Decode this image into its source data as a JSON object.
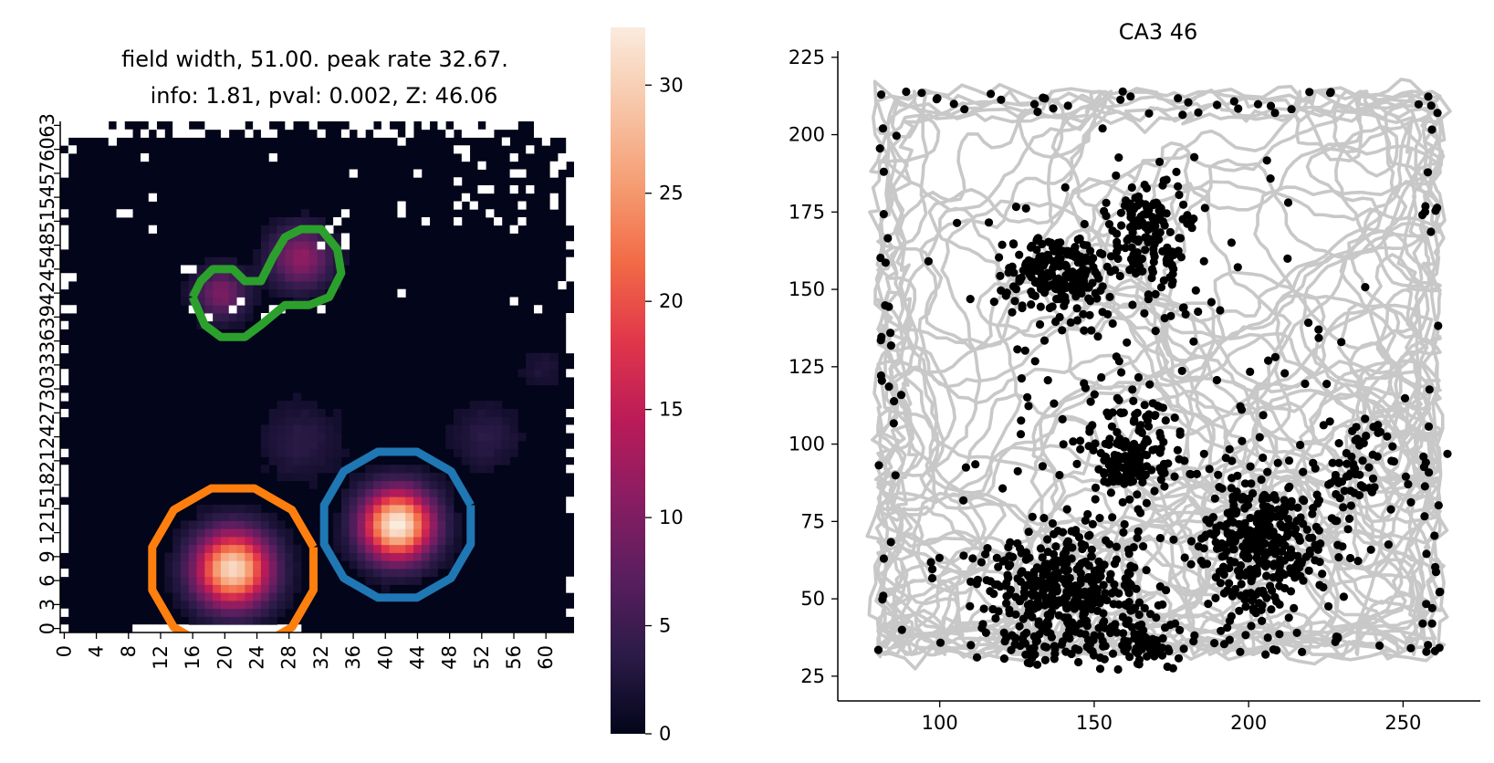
{
  "chart_data": [
    {
      "type": "heatmap",
      "title_line1": "field width, 51.00. peak rate 32.67.",
      "title_line2": "info: 1.81, pval: 0.002, Z: 46.06",
      "xlabel": "",
      "ylabel": "",
      "grid_size": [
        64,
        64
      ],
      "x_tick_labels": [
        "0",
        "4",
        "8",
        "12",
        "16",
        "20",
        "24",
        "28",
        "32",
        "36",
        "40",
        "44",
        "48",
        "52",
        "56",
        "60"
      ],
      "y_tick_labels": [
        "0",
        "3",
        "6",
        "9",
        "12",
        "15",
        "18",
        "21",
        "24",
        "27",
        "30",
        "33",
        "36",
        "39",
        "42",
        "45",
        "48",
        "51",
        "54",
        "57",
        "60",
        "63"
      ],
      "colorbar": {
        "min": 0,
        "max": 32.67,
        "tick_labels": [
          "0",
          "5",
          "10",
          "15",
          "20",
          "25",
          "30"
        ],
        "tick_values": [
          0,
          5,
          10,
          15,
          20,
          25,
          30
        ]
      },
      "colormap": [
        "#03051a",
        "#2b1b48",
        "#5a1e5f",
        "#8a1d62",
        "#bb1b58",
        "#e1364a",
        "#f26a46",
        "#f59d73",
        "#f7c6a8",
        "#faebdd"
      ],
      "peaks": [
        {
          "x": 21.5,
          "y": 8.0,
          "rate": 30.5,
          "spread": 3.2
        },
        {
          "x": 42.0,
          "y": 13.5,
          "rate": 32.67,
          "spread": 3.0
        },
        {
          "x": 30.0,
          "y": 47.0,
          "rate": 11.0,
          "spread": 2.6
        },
        {
          "x": 20.0,
          "y": 42.5,
          "rate": 9.5,
          "spread": 2.2
        },
        {
          "x": 30.0,
          "y": 24.0,
          "rate": 3.0,
          "spread": 3.5
        },
        {
          "x": 53.0,
          "y": 24.5,
          "rate": 3.0,
          "spread": 3.0
        },
        {
          "x": 60.0,
          "y": 33.0,
          "rate": 2.0,
          "spread": 2.0
        }
      ],
      "fields": [
        {
          "name": "field-orange",
          "color": "#ff7f0e",
          "center": [
            21.5,
            8.0
          ],
          "radius": 16.5
        },
        {
          "name": "field-blue",
          "color": "#1f77b4",
          "center": [
            42.0,
            13.5
          ],
          "radius": 15.0
        },
        {
          "name": "field-green",
          "color": "#2ca02c",
          "outline": [
            [
              16.5,
              42
            ],
            [
              17.5,
              44
            ],
            [
              19,
              45.5
            ],
            [
              21.5,
              45.5
            ],
            [
              23,
              44
            ],
            [
              25,
              44
            ],
            [
              26.5,
              47
            ],
            [
              28,
              49.5
            ],
            [
              30,
              50.5
            ],
            [
              32.5,
              50.5
            ],
            [
              34.5,
              48
            ],
            [
              35,
              45
            ],
            [
              33.5,
              42
            ],
            [
              31,
              41
            ],
            [
              28,
              41
            ],
            [
              25,
              38.5
            ],
            [
              23,
              37
            ],
            [
              20,
              37
            ],
            [
              18,
              38.5
            ],
            [
              16.5,
              42
            ]
          ]
        }
      ]
    },
    {
      "type": "scatter",
      "title": "CA3 46",
      "xlabel": "",
      "ylabel": "",
      "xlim": [
        67,
        275
      ],
      "ylim": [
        17,
        227
      ],
      "x_ticks": [
        100,
        150,
        200,
        250
      ],
      "y_ticks": [
        25,
        50,
        75,
        100,
        125,
        150,
        175,
        200,
        225
      ],
      "trajectory_color": "#c8c8c8",
      "spike_color": "#000000",
      "arena": {
        "x": [
          80,
          262
        ],
        "y": [
          32,
          214
        ]
      },
      "spike_clusters": [
        {
          "x": 140,
          "y": 50,
          "sx": 14,
          "sy": 11,
          "n": 420
        },
        {
          "x": 205,
          "y": 68,
          "sx": 10,
          "sy": 11,
          "n": 360
        },
        {
          "x": 168,
          "y": 33,
          "sx": 5,
          "sy": 5,
          "n": 60
        },
        {
          "x": 168,
          "y": 170,
          "sx": 7,
          "sy": 9,
          "n": 160
        },
        {
          "x": 138,
          "y": 155,
          "sx": 8,
          "sy": 7,
          "n": 200
        },
        {
          "x": 163,
          "y": 97,
          "sx": 8,
          "sy": 8,
          "n": 150
        },
        {
          "x": 236,
          "y": 93,
          "sx": 6,
          "sy": 7,
          "n": 60
        },
        {
          "x": 168,
          "y": 115,
          "sx": 40,
          "sy": 40,
          "n": 180
        }
      ]
    }
  ]
}
